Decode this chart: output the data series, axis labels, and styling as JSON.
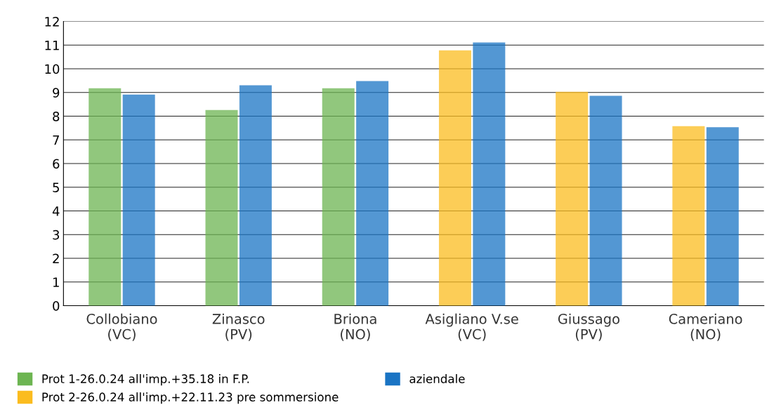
{
  "chart_data": {
    "type": "bar",
    "categories": [
      "Collobiano\n(VC)",
      "Zinasco\n(PV)",
      "Briona\n(NO)",
      "Asigliano V.se\n(VC)",
      "Giussago\n(PV)",
      "Cameriano\n(NO)"
    ],
    "series": [
      {
        "name": "Prot 1-26.0.24 all'imp.+35.18 in F.P.",
        "color": "#6db552",
        "values": [
          9.14,
          8.22,
          9.14,
          null,
          null,
          null
        ]
      },
      {
        "name": "aziendale",
        "color": "#1a74c4",
        "values": [
          8.87,
          9.26,
          9.44,
          11.07,
          8.82,
          7.49
        ]
      },
      {
        "name": "Prot 2-26.0.24 all'imp.+22.11.23 pre sommersione",
        "color": "#fbbc1f",
        "values": [
          null,
          null,
          null,
          10.74,
          8.99,
          7.54
        ]
      }
    ],
    "ylim": [
      0,
      12
    ],
    "yticks": [
      0,
      1,
      2,
      3,
      4,
      5,
      6,
      7,
      8,
      9,
      10,
      11,
      12
    ],
    "grid": "y",
    "legend": "bottom"
  }
}
